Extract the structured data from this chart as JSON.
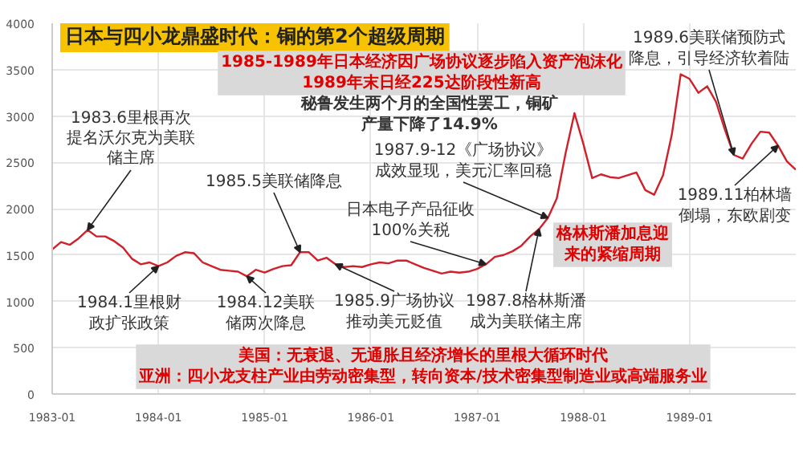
{
  "chart_data": {
    "type": "line",
    "title": "日本与四小龙鼎盛时代：铜的第2个超级周期",
    "x": [
      "1983-01",
      "1983-02",
      "1983-03",
      "1983-04",
      "1983-05",
      "1983-06",
      "1983-07",
      "1983-08",
      "1983-09",
      "1983-10",
      "1983-11",
      "1983-12",
      "1984-01",
      "1984-02",
      "1984-03",
      "1984-04",
      "1984-05",
      "1984-06",
      "1984-07",
      "1984-08",
      "1984-09",
      "1984-10",
      "1984-11",
      "1984-12",
      "1985-01",
      "1985-02",
      "1985-03",
      "1985-04",
      "1985-05",
      "1985-06",
      "1985-07",
      "1985-08",
      "1985-09",
      "1985-10",
      "1985-11",
      "1985-12",
      "1986-01",
      "1986-02",
      "1986-03",
      "1986-04",
      "1986-05",
      "1986-06",
      "1986-07",
      "1986-08",
      "1986-09",
      "1986-10",
      "1986-11",
      "1986-12",
      "1987-01",
      "1987-02",
      "1987-03",
      "1987-04",
      "1987-05",
      "1987-06",
      "1987-07",
      "1987-08",
      "1987-09",
      "1987-10",
      "1987-11",
      "1987-12",
      "1988-01",
      "1988-02",
      "1988-03",
      "1988-04",
      "1988-05",
      "1988-06",
      "1988-07",
      "1988-08",
      "1988-09",
      "1988-10",
      "1988-11",
      "1988-12",
      "1989-01",
      "1989-02",
      "1989-03",
      "1989-04",
      "1989-05",
      "1989-06",
      "1989-07",
      "1989-08",
      "1989-09",
      "1989-10",
      "1989-11",
      "1989-12",
      "1990-01"
    ],
    "series": [
      {
        "color": "#d0202a",
        "values": [
          1560,
          1640,
          1610,
          1680,
          1770,
          1700,
          1700,
          1650,
          1580,
          1460,
          1400,
          1420,
          1380,
          1420,
          1490,
          1530,
          1520,
          1420,
          1380,
          1340,
          1330,
          1320,
          1270,
          1340,
          1310,
          1350,
          1380,
          1390,
          1530,
          1530,
          1440,
          1470,
          1400,
          1370,
          1380,
          1370,
          1400,
          1420,
          1410,
          1440,
          1440,
          1400,
          1360,
          1330,
          1300,
          1320,
          1310,
          1320,
          1350,
          1400,
          1480,
          1500,
          1540,
          1600,
          1700,
          1780,
          1900,
          2110,
          2600,
          3030,
          2700,
          2330,
          2370,
          2340,
          2330,
          2360,
          2390,
          2200,
          2150,
          2360,
          2800,
          3450,
          3400,
          3250,
          3320,
          3150,
          2850,
          2580,
          2540,
          2700,
          2830,
          2820,
          2680,
          2510,
          2420
        ]
      }
    ],
    "xlim": [
      "1983-01",
      "1990-01"
    ],
    "xticks": [
      "1983-01",
      "1984-01",
      "1985-01",
      "1986-01",
      "1987-01",
      "1988-01",
      "1989-01"
    ],
    "ylim": [
      0,
      4000
    ],
    "yticks": [
      0,
      500,
      1000,
      1500,
      2000,
      2500,
      3000,
      3500,
      4000
    ],
    "grid": true,
    "annotations": [
      {
        "text": "1983.6里根再次提名沃尔克为美联储主席",
        "x": "1983-05",
        "y": 1770
      },
      {
        "text": "1984.1里根财政扩张政策",
        "x": "1984-01",
        "y": 1380
      },
      {
        "text": "1984.12美联储两次降息",
        "x": "1984-11",
        "y": 1270
      },
      {
        "text": "1985.5美联储降息",
        "x": "1985-05",
        "y": 1530
      },
      {
        "text": "1985.9广场协议推动美元贬值",
        "x": "1985-09",
        "y": 1400
      },
      {
        "text": "日本电子产品征收100%关税",
        "x": "1987-02",
        "y": 1400
      },
      {
        "text": "1987.8格林斯潘成为美联储主席",
        "x": "1987-08",
        "y": 1780
      },
      {
        "text": "1987.9-12《广场协议》成效显现，美元汇率回稳",
        "x": "1987-09",
        "y": 1900
      },
      {
        "text": "1989.6美联储预防式降息，引导经济软着陆",
        "x": "1989-06",
        "y": 2580
      },
      {
        "text": "1989.11柏林墙倒塌，东欧剧变",
        "x": "1989-11",
        "y": 2680
      },
      "1985-1989年日本经济因广场协议逐步陷入资产泡沫化",
      "1989年末日经225达阶段性新高",
      "秘鲁发生两个月的全国性罢工，铜矿产量下降了14.9%",
      "格林斯潘加息迎来的紧缩周期",
      "美国：无衰退、无通胀且经济增长的里根大循环时代",
      "亚洲：四小龙支柱产业由劳动密集型，转向资本/技术密集型制造业或高端服务业"
    ]
  }
}
